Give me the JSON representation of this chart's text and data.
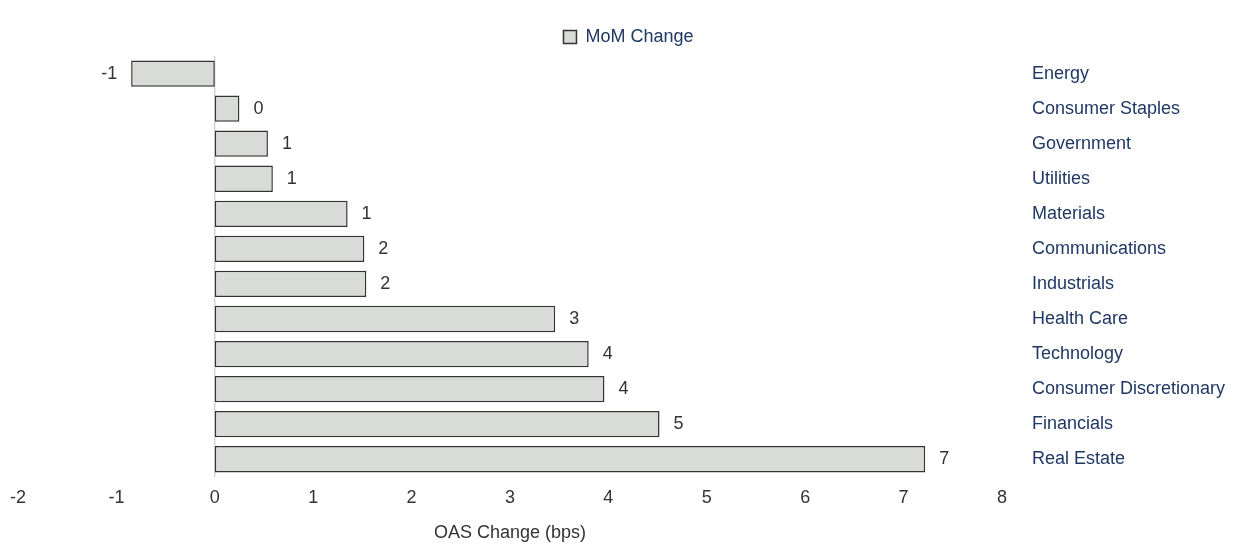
{
  "chart_data": {
    "type": "bar",
    "orientation": "horizontal",
    "xlabel": "OAS Change (bps)",
    "categories": [
      "Energy",
      "Consumer Staples",
      "Government",
      "Utilities",
      "Materials",
      "Communications",
      "Industrials",
      "Health Care",
      "Technology",
      "Consumer Discretionary",
      "Financials",
      "Real Estate"
    ],
    "series": [
      {
        "name": "MoM Change",
        "color": "#d9dbd8",
        "values": [
          -0.85,
          0.25,
          0.54,
          0.59,
          1.35,
          1.52,
          1.54,
          3.46,
          3.8,
          3.96,
          4.52,
          7.22
        ],
        "value_labels": [
          "-1",
          "0",
          "1",
          "1",
          "1",
          "2",
          "2",
          "3",
          "4",
          "4",
          "5",
          "7"
        ]
      }
    ],
    "xlim": [
      -2,
      8
    ],
    "xticks": [
      -2,
      -1,
      0,
      1,
      2,
      3,
      4,
      5,
      6,
      7,
      8
    ],
    "ref_lines": [
      {
        "axis": "x",
        "value": 0,
        "color": "#bfbfbf"
      }
    ],
    "legend": "top"
  }
}
